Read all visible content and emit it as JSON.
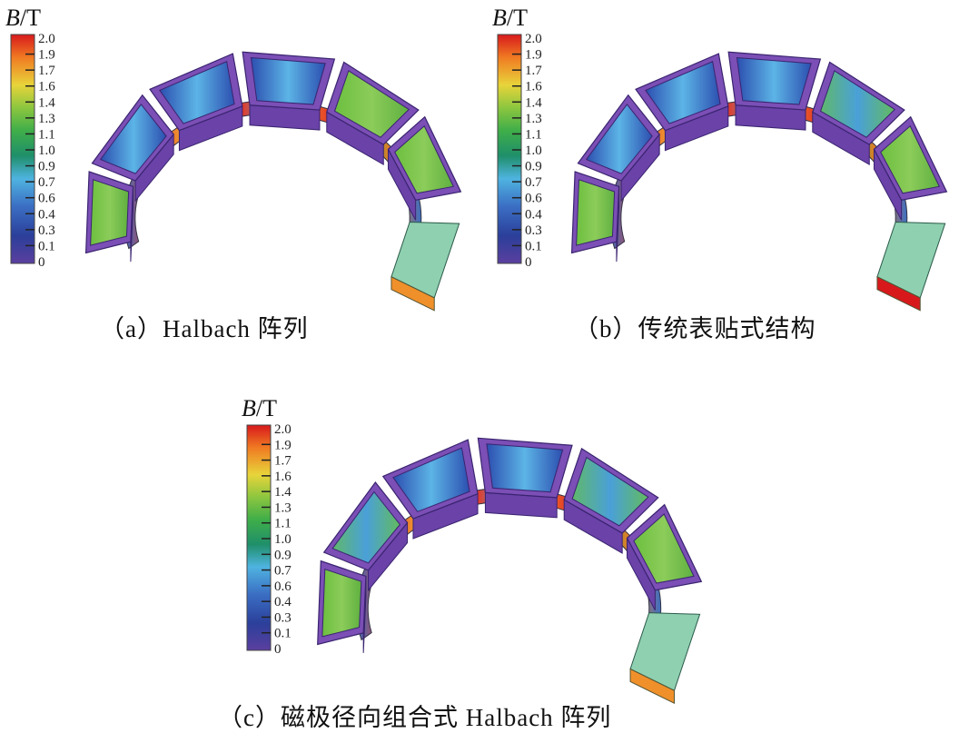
{
  "colorbar": {
    "label_var": "B",
    "label_unit": "/T",
    "ticks": [
      "2.0",
      "1.9",
      "1.7",
      "1.6",
      "1.4",
      "1.3",
      "1.1",
      "1.0",
      "0.9",
      "0.7",
      "0.6",
      "0.4",
      "0.3",
      "0.1",
      "0"
    ],
    "colors": [
      "#d7191c",
      "#f07a22",
      "#e8d43a",
      "#8cc63f",
      "#3fae49",
      "#1f8f6a",
      "#4fb3e0",
      "#3b6fc4",
      "#2b3f9a",
      "#5b3f9f"
    ]
  },
  "panels": [
    {
      "id": "a",
      "caption": "（a）Halbach 阵列"
    },
    {
      "id": "b",
      "caption": "（b）传统表贴式结构"
    },
    {
      "id": "c",
      "caption": "（c）磁极径向组合式 Halbach 阵列"
    }
  ],
  "colors": {
    "magnet_frame": "#7b4fb5",
    "magnet_edge": "#3a2470",
    "back_ring": "#8fd0b0"
  }
}
